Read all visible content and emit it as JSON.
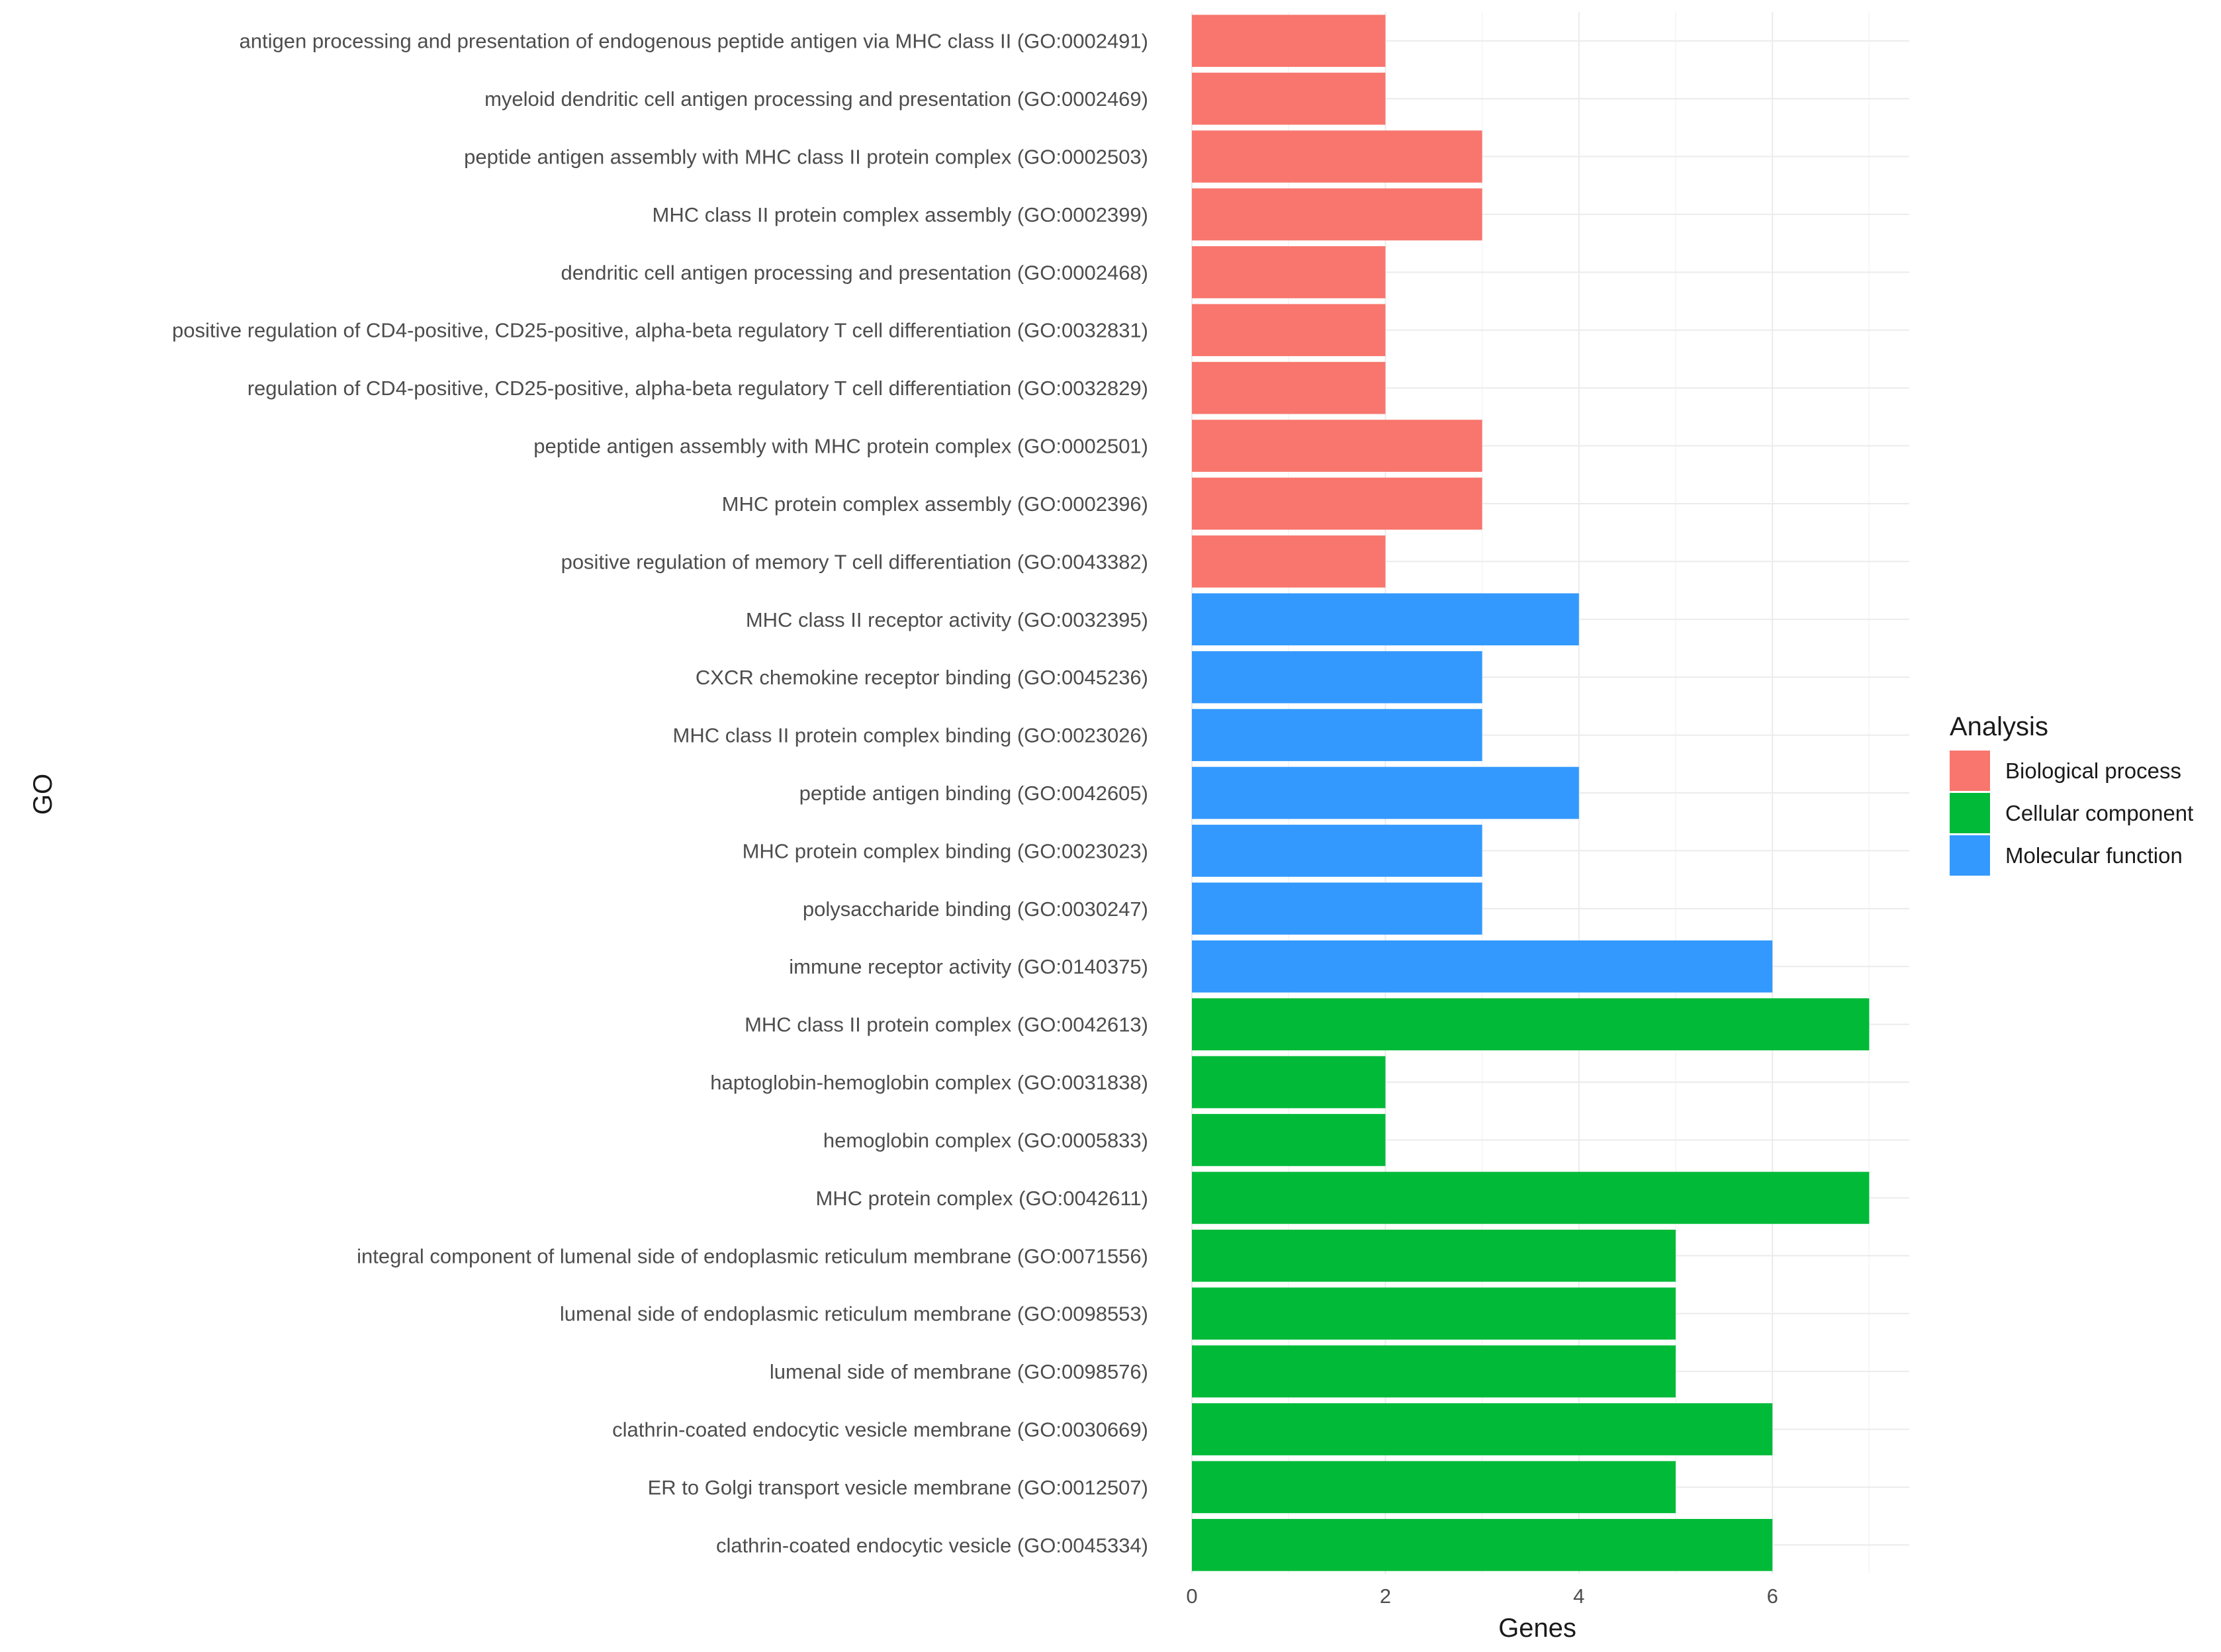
{
  "chart_data": {
    "type": "bar",
    "orientation": "horizontal",
    "xlabel": "Genes",
    "ylabel": "GO",
    "xlim": [
      0,
      7.3
    ],
    "x_ticks": [
      0,
      2,
      4,
      6
    ],
    "legend": {
      "title": "Analysis",
      "position": "right",
      "entries": [
        {
          "name": "Biological process",
          "color": "#F8766D"
        },
        {
          "name": "Cellular component",
          "color": "#00BA38"
        },
        {
          "name": "Molecular function",
          "color": "#3399FF"
        }
      ]
    },
    "categories": [
      "antigen processing and presentation of endogenous peptide antigen via MHC class II (GO:0002491)",
      "myeloid dendritic cell antigen processing and presentation (GO:0002469)",
      "peptide antigen assembly with MHC class II protein complex (GO:0002503)",
      "MHC class II protein complex assembly (GO:0002399)",
      "dendritic cell antigen processing and presentation (GO:0002468)",
      "positive regulation of CD4-positive, CD25-positive, alpha-beta regulatory T cell differentiation (GO:0032831)",
      "regulation of CD4-positive, CD25-positive, alpha-beta regulatory T cell differentiation (GO:0032829)",
      "peptide antigen assembly with MHC protein complex (GO:0002501)",
      "MHC protein complex assembly (GO:0002396)",
      "positive regulation of memory T cell differentiation (GO:0043382)",
      "MHC class II receptor activity (GO:0032395)",
      "CXCR chemokine receptor binding (GO:0045236)",
      "MHC class II protein complex binding (GO:0023026)",
      "peptide antigen binding (GO:0042605)",
      "MHC protein complex binding (GO:0023023)",
      "polysaccharide binding (GO:0030247)",
      "immune receptor activity (GO:0140375)",
      "MHC class II protein complex (GO:0042613)",
      "haptoglobin-hemoglobin complex (GO:0031838)",
      "hemoglobin complex (GO:0005833)",
      "MHC protein complex (GO:0042611)",
      "integral component of lumenal side of endoplasmic reticulum membrane (GO:0071556)",
      "lumenal side of endoplasmic reticulum membrane (GO:0098553)",
      "lumenal side of membrane (GO:0098576)",
      "clathrin-coated endocytic vesicle membrane (GO:0030669)",
      "ER to Golgi transport vesicle membrane (GO:0012507)",
      "clathrin-coated endocytic vesicle (GO:0045334)"
    ],
    "values": [
      2,
      2,
      3,
      3,
      2,
      2,
      2,
      3,
      3,
      2,
      4,
      3,
      3,
      4,
      3,
      3,
      6,
      7,
      2,
      2,
      7,
      5,
      5,
      5,
      6,
      5,
      6
    ],
    "groups": [
      "Biological process",
      "Biological process",
      "Biological process",
      "Biological process",
      "Biological process",
      "Biological process",
      "Biological process",
      "Biological process",
      "Biological process",
      "Biological process",
      "Molecular function",
      "Molecular function",
      "Molecular function",
      "Molecular function",
      "Molecular function",
      "Molecular function",
      "Molecular function",
      "Cellular component",
      "Cellular component",
      "Cellular component",
      "Cellular component",
      "Cellular component",
      "Cellular component",
      "Cellular component",
      "Cellular component",
      "Cellular component",
      "Cellular component"
    ]
  }
}
